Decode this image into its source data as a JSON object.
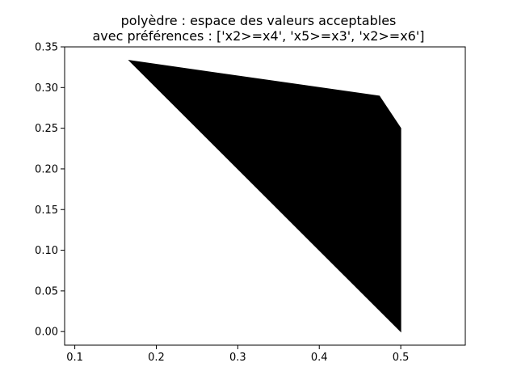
{
  "chart_data": {
    "type": "area",
    "title_lines": [
      "polyèdre : espace des valeurs acceptables",
      "avec préférences : ['x2>=x4', 'x5>=x3', 'x2>=x6']"
    ],
    "xlabel": "",
    "ylabel": "",
    "xlim": [
      0.0875,
      0.5792
    ],
    "ylim": [
      -0.0167,
      0.35
    ],
    "x_ticks": [
      0.1,
      0.2,
      0.3,
      0.4,
      0.5
    ],
    "x_tick_labels": [
      "0.1",
      "0.2",
      "0.3",
      "0.4",
      "0.5"
    ],
    "y_ticks": [
      0.0,
      0.05,
      0.1,
      0.15,
      0.2,
      0.25,
      0.3,
      0.35
    ],
    "y_tick_labels": [
      "0.00",
      "0.05",
      "0.10",
      "0.15",
      "0.20",
      "0.25",
      "0.30",
      "0.35"
    ],
    "grid": false,
    "fill_color": "#000000",
    "polygon": [
      {
        "x": 0.1667,
        "y": 0.3333
      },
      {
        "x": 0.4737,
        "y": 0.2895
      },
      {
        "x": 0.5,
        "y": 0.25
      },
      {
        "x": 0.5,
        "y": 0.0
      }
    ]
  }
}
